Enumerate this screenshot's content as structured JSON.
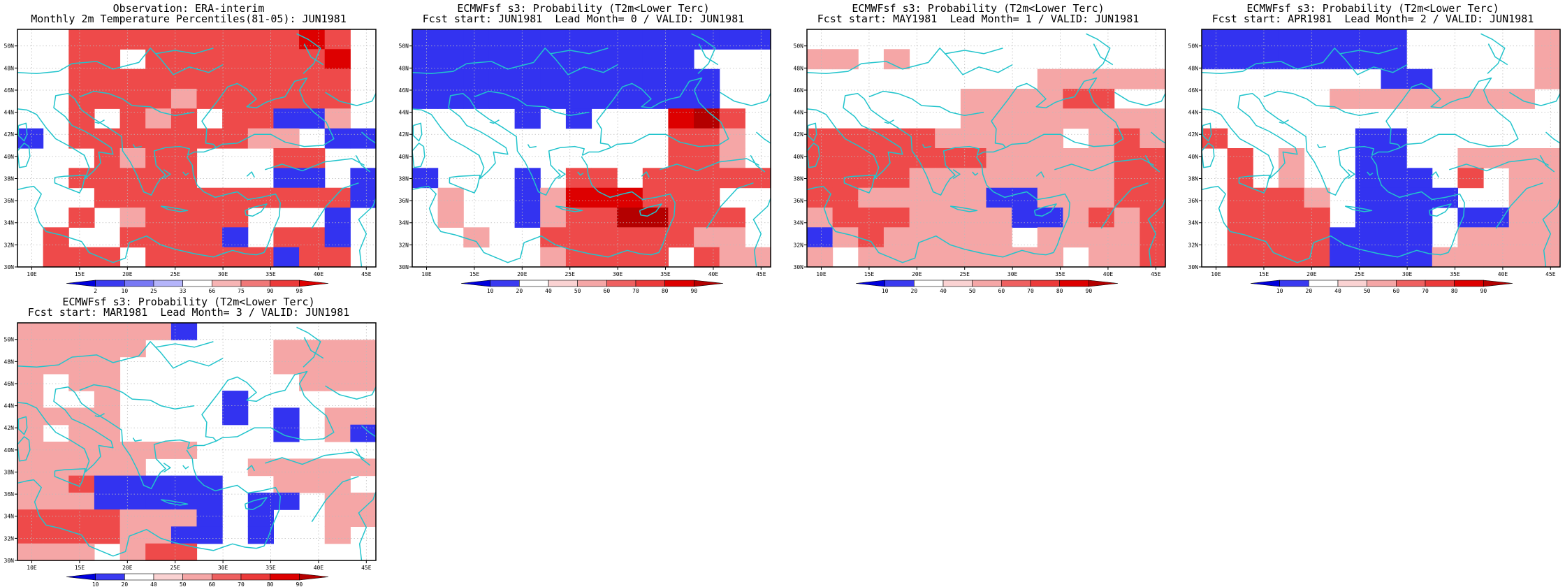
{
  "panels": [
    {
      "title1": "Observation: ERA-interim",
      "title2": "Monthly 2m Temperature Percentiles(81-05): JUN1981",
      "legend": "obs",
      "bg": "w",
      "grid": [
        "WWRRRRRRRRRNRW",
        "WWRRWRRRRRRRNW",
        "WWRRRRRRRRRRRW",
        "WWRRRRPRRRRRRW",
        "WWRWRPRWRRBBPW",
        "BWRRRRRRRPPWBB",
        "WWWRPRRWWWRRWW",
        "WWRRRRRWWWBBWB",
        "WWWRRRRRRRRRRB",
        "WWRWPRRRRWWWBW",
        "WRWWRRRRBWRRBW",
        "WRRRWRRRRRBRRW"
      ]
    },
    {
      "title1": "ECMWFsf s3: Probability (T2m<Lower Terc)",
      "title2": "Fcst start: JUN1981  Lead Month= 0 / VALID: JUN1981",
      "legend": "prob",
      "bg": "w",
      "grid": [
        "BBBBBBBBBBBBBB",
        "BBBBBBBBBBBWWW",
        "BBBBBBBBBBBBWW",
        "BBBBBBBBBBBBWW",
        "WWWWBWBWWWNDRW",
        "WWWWWWWWWWRRPW",
        "WWWWWWWWWWRRPW",
        "BWWWBWRRWRRRRR",
        "WPWWBPNNNRRRWW",
        "WPWWBPRRDDRRRW",
        "WWPWWRRRRRRPPW",
        "WWWWWPRRRRWRPP"
      ]
    },
    {
      "title1": "ECMWFsf s3: Probability (T2m<Lower Terc)",
      "title2": "Fcst start: MAY1981  Lead Month= 1 / VALID: JUN1981",
      "legend": "prob",
      "bg": "w",
      "grid": [
        "WWWWWWWWWWWWWW",
        "PPWPWWWWWWWWWW",
        "WWWWWWWWWPPPPP",
        "WWWWWWPPPPRRWW",
        "WWWWWWPPPPPPPP",
        "RRRRRPPPPPWPRP",
        "RRRRRRRPPPPPRR",
        "RRRRPPPPPPPPRR",
        "RRPPPPPBBPPPRR",
        "PRRRPPPPBBPRPR",
        "BPRPPPPPWPPPPR",
        "PWPPPPPPPPWPPR"
      ]
    },
    {
      "title1": "ECMWFsf s3: Probability (T2m<Lower Terc)",
      "title2": "Fcst start: APR1981  Lead Month= 2 / VALID: JUN1981",
      "legend": "prob",
      "bg": "w",
      "grid": [
        "BBBBBBBBWWWWWP",
        "BBBBBBBBWWWWWP",
        "WWWWWWWBBWWWWP",
        "WWWWWPPPPPPPPW",
        "WWWWWWWWWWWWWW",
        "RWWWWWBBWWWWWW",
        "WRWPWWBBWWPPPP",
        "WRWPWWBBBWRWPP",
        "WRRRPWBBBBWWPP",
        "WRRRRWBBBWBBPP",
        "WRRRRBBBBWPPPP",
        "WRRRRBBBBPPPPP"
      ]
    },
    {
      "title1": "ECMWFsf s3: Probability (T2m<Lower Terc)",
      "title2": "Fcst start: MAR1981  Lead Month= 3 / VALID: JUN1981",
      "legend": "prob",
      "bg": "w",
      "grid": [
        "PPPPPPBWWWWWWW",
        "PPPPPWWWWWPPPP",
        "PPPPWWWWWWPPPP",
        "PWPPWWWWWWWPPP",
        "PWWPWWWWBWWWWW",
        "PPPPWWWWBWBWPP",
        "PWPPWWWWWWBWPB",
        "PPPPPPPWWWWWWW",
        "PPPPPWWWWPPPPP",
        "PPRBBBBBWWPPPW",
        "PPPBBBBBWBBWPP",
        "RRRRPPPBWBWWPP",
        "RRRRPPBBWBWWPW",
        "PPPWPRRWWWWWWW"
      ]
    }
  ],
  "axes": {
    "xticks": [
      "10E",
      "15E",
      "20E",
      "25E",
      "30E",
      "35E",
      "40E",
      "45E"
    ],
    "yticks": [
      "50N",
      "48N",
      "46N",
      "44N",
      "42N",
      "40N",
      "38N",
      "36N",
      "34N",
      "32N",
      "30N"
    ]
  },
  "colors": {
    "W": "#ffffff",
    "P": "#f5a6a6",
    "R": "#ee4a4a",
    "N": "#dd0000",
    "D": "#b40000",
    "L": "#a6a6f5",
    "B": "#3333f0",
    "coast": "#22c4cc"
  },
  "legends": {
    "obs": {
      "labels": [
        "2",
        "10",
        "25",
        "33",
        "66",
        "75",
        "90",
        "98"
      ],
      "colors": [
        "#0000dd",
        "#3a3af0",
        "#7878f5",
        "#b4b4fa",
        "#ffffff",
        "#f7b4b4",
        "#f07878",
        "#eb3a3a",
        "#dd0000"
      ]
    },
    "prob": {
      "labels": [
        "10",
        "20",
        "40",
        "50",
        "60",
        "70",
        "80",
        "90"
      ],
      "colors": [
        "#0000dd",
        "#3a3af0",
        "#ffffff",
        "#fad2d2",
        "#f5a6a6",
        "#ee6060",
        "#eb3a3a",
        "#dd0000",
        "#b40000"
      ]
    }
  }
}
